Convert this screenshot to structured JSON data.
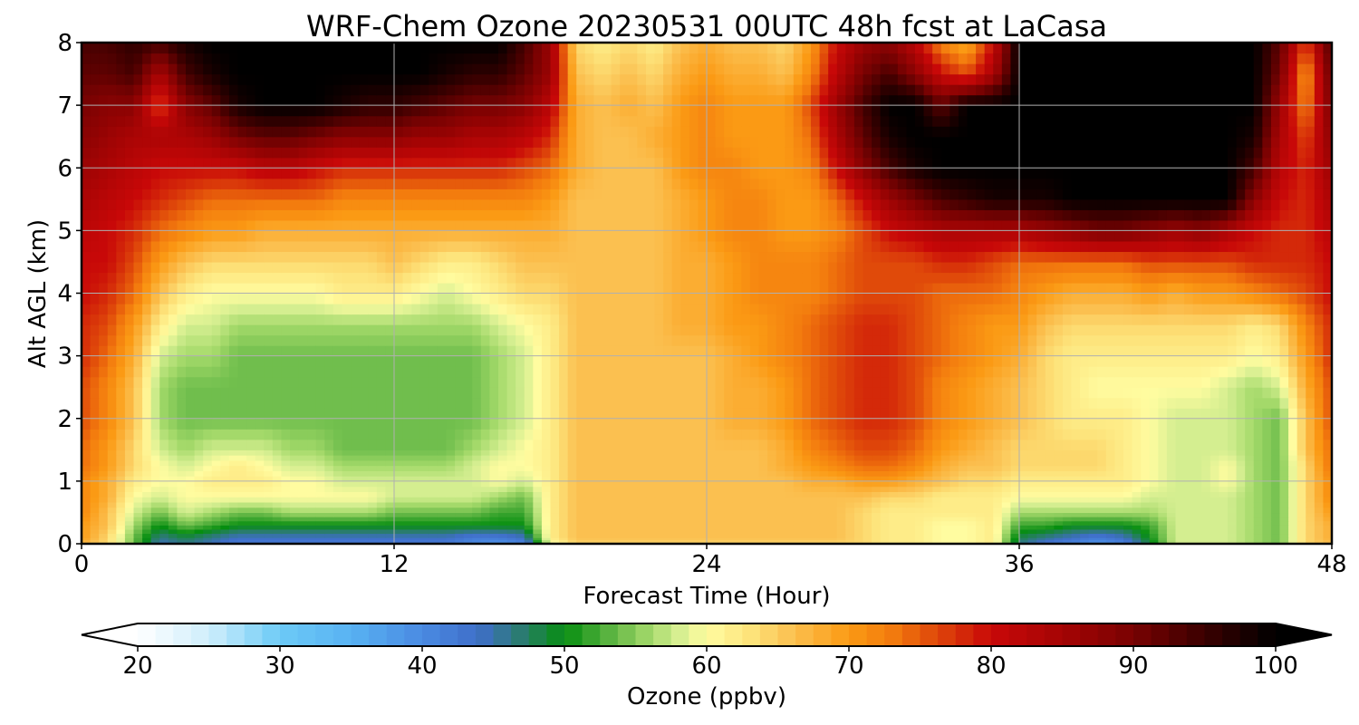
{
  "chart_data": {
    "type": "heatmap",
    "title": "WRF-Chem Ozone  20230531 00UTC 48h fcst at LaCasa",
    "xlabel": "Forecast Time (Hour)",
    "ylabel": "Alt AGL (km)",
    "xlim": [
      0,
      48
    ],
    "ylim": [
      0,
      8
    ],
    "xticks": [
      0,
      12,
      24,
      36,
      48
    ],
    "xtick_labels": [
      "0",
      "12",
      "24",
      "36",
      "48"
    ],
    "yticks": [
      0,
      1,
      2,
      3,
      4,
      5,
      6,
      7,
      8
    ],
    "ytick_labels": [
      "0",
      "1",
      "2",
      "3",
      "4",
      "5",
      "6",
      "7",
      "8"
    ],
    "grid": true,
    "x": [
      0,
      1,
      2,
      3,
      4,
      5,
      6,
      7,
      8,
      9,
      10,
      11,
      12,
      13,
      14,
      15,
      16,
      17,
      18,
      19,
      20,
      21,
      22,
      23,
      24,
      25,
      26,
      27,
      28,
      29,
      30,
      31,
      32,
      33,
      34,
      35,
      36,
      37,
      38,
      39,
      40,
      41,
      42,
      43,
      44,
      45,
      46,
      47,
      48
    ],
    "y": [
      0,
      0.1,
      0.3,
      0.5,
      0.75,
      1,
      1.25,
      1.5,
      2,
      2.5,
      3,
      3.5,
      4,
      4.5,
      5,
      5.5,
      6,
      6.5,
      7,
      7.5,
      8
    ],
    "z_units": "ppbv",
    "z": [
      [
        66,
        64,
        54,
        44,
        46,
        44,
        42,
        42,
        42,
        42,
        42,
        42,
        42,
        42,
        42,
        40,
        38,
        40,
        58,
        64,
        64,
        64,
        64,
        64,
        64,
        64,
        64,
        64,
        64,
        64,
        64,
        62,
        62,
        60,
        60,
        62,
        46,
        42,
        40,
        38,
        40,
        48,
        58,
        58,
        58,
        56,
        54,
        64,
        66
      ],
      [
        70,
        64,
        54,
        46,
        48,
        46,
        44,
        44,
        44,
        44,
        44,
        44,
        44,
        44,
        44,
        42,
        42,
        44,
        62,
        66,
        66,
        66,
        66,
        66,
        66,
        66,
        66,
        66,
        66,
        66,
        64,
        62,
        62,
        60,
        60,
        62,
        48,
        46,
        44,
        42,
        44,
        50,
        58,
        58,
        58,
        56,
        54,
        64,
        68
      ],
      [
        70,
        66,
        56,
        50,
        54,
        52,
        50,
        50,
        50,
        50,
        50,
        50,
        50,
        50,
        50,
        50,
        50,
        50,
        62,
        66,
        66,
        66,
        66,
        66,
        66,
        66,
        66,
        66,
        66,
        66,
        64,
        62,
        62,
        60,
        60,
        62,
        52,
        52,
        50,
        50,
        50,
        52,
        58,
        58,
        58,
        56,
        54,
        64,
        68
      ],
      [
        72,
        66,
        58,
        54,
        58,
        56,
        54,
        54,
        56,
        56,
        56,
        56,
        54,
        54,
        54,
        54,
        52,
        52,
        62,
        66,
        66,
        66,
        66,
        66,
        66,
        66,
        66,
        66,
        66,
        66,
        64,
        62,
        62,
        62,
        62,
        62,
        56,
        56,
        56,
        56,
        56,
        56,
        58,
        58,
        58,
        56,
        54,
        64,
        70
      ],
      [
        72,
        68,
        60,
        58,
        60,
        60,
        60,
        60,
        60,
        60,
        60,
        60,
        58,
        58,
        58,
        58,
        56,
        54,
        62,
        66,
        66,
        66,
        66,
        66,
        66,
        66,
        66,
        66,
        66,
        66,
        66,
        64,
        64,
        62,
        62,
        62,
        60,
        60,
        60,
        60,
        60,
        58,
        58,
        58,
        58,
        56,
        54,
        64,
        72
      ],
      [
        72,
        68,
        62,
        60,
        60,
        62,
        62,
        62,
        60,
        60,
        58,
        58,
        58,
        58,
        58,
        58,
        60,
        58,
        62,
        66,
        66,
        66,
        66,
        66,
        66,
        66,
        66,
        66,
        68,
        68,
        70,
        70,
        68,
        66,
        64,
        64,
        62,
        62,
        62,
        62,
        62,
        60,
        58,
        58,
        60,
        56,
        54,
        64,
        72
      ],
      [
        74,
        70,
        64,
        60,
        58,
        60,
        62,
        60,
        58,
        58,
        56,
        56,
        56,
        56,
        56,
        58,
        60,
        60,
        62,
        66,
        66,
        66,
        66,
        66,
        66,
        66,
        66,
        68,
        70,
        72,
        74,
        74,
        72,
        68,
        66,
        66,
        64,
        64,
        64,
        64,
        62,
        60,
        58,
        58,
        60,
        56,
        54,
        64,
        74
      ],
      [
        74,
        70,
        64,
        58,
        56,
        58,
        58,
        58,
        56,
        56,
        54,
        54,
        54,
        54,
        54,
        56,
        58,
        60,
        62,
        66,
        66,
        66,
        66,
        66,
        66,
        66,
        66,
        68,
        72,
        74,
        76,
        76,
        74,
        70,
        68,
        66,
        64,
        64,
        64,
        64,
        62,
        60,
        58,
        58,
        58,
        56,
        54,
        66,
        74
      ],
      [
        76,
        72,
        66,
        56,
        54,
        54,
        54,
        54,
        54,
        54,
        54,
        54,
        54,
        54,
        54,
        54,
        56,
        58,
        62,
        66,
        66,
        66,
        66,
        66,
        66,
        68,
        68,
        70,
        74,
        76,
        78,
        78,
        76,
        72,
        70,
        68,
        66,
        64,
        62,
        62,
        62,
        60,
        58,
        58,
        58,
        56,
        54,
        66,
        76
      ],
      [
        76,
        72,
        66,
        56,
        54,
        54,
        54,
        54,
        54,
        54,
        54,
        54,
        54,
        54,
        54,
        54,
        56,
        58,
        62,
        66,
        66,
        66,
        66,
        66,
        66,
        68,
        68,
        70,
        74,
        76,
        78,
        78,
        76,
        72,
        70,
        68,
        66,
        64,
        62,
        60,
        60,
        60,
        60,
        60,
        58,
        56,
        58,
        68,
        76
      ],
      [
        78,
        74,
        68,
        58,
        56,
        56,
        54,
        54,
        54,
        54,
        54,
        54,
        54,
        54,
        54,
        54,
        56,
        58,
        62,
        66,
        66,
        66,
        66,
        66,
        66,
        68,
        70,
        72,
        74,
        76,
        78,
        78,
        76,
        74,
        72,
        70,
        68,
        64,
        62,
        62,
        62,
        62,
        62,
        62,
        62,
        60,
        62,
        70,
        78
      ],
      [
        78,
        76,
        70,
        62,
        58,
        58,
        56,
        56,
        56,
        56,
        56,
        56,
        56,
        56,
        56,
        56,
        58,
        60,
        62,
        66,
        66,
        66,
        66,
        68,
        68,
        70,
        70,
        72,
        74,
        76,
        78,
        78,
        76,
        74,
        72,
        70,
        70,
        66,
        64,
        64,
        64,
        64,
        64,
        64,
        64,
        62,
        64,
        72,
        78
      ],
      [
        80,
        78,
        74,
        66,
        62,
        60,
        60,
        60,
        60,
        60,
        62,
        62,
        62,
        60,
        58,
        60,
        62,
        64,
        64,
        66,
        66,
        66,
        66,
        68,
        68,
        70,
        72,
        72,
        72,
        74,
        76,
        76,
        76,
        74,
        74,
        74,
        72,
        70,
        68,
        68,
        68,
        70,
        68,
        70,
        70,
        72,
        74,
        76,
        80
      ],
      [
        80,
        80,
        76,
        70,
        66,
        64,
        64,
        64,
        64,
        64,
        64,
        64,
        66,
        64,
        62,
        62,
        64,
        66,
        66,
        66,
        66,
        66,
        66,
        68,
        68,
        70,
        72,
        72,
        72,
        74,
        76,
        76,
        76,
        78,
        78,
        76,
        74,
        74,
        74,
        74,
        74,
        76,
        76,
        76,
        76,
        78,
        78,
        78,
        80
      ],
      [
        82,
        80,
        78,
        74,
        72,
        70,
        70,
        68,
        68,
        68,
        68,
        68,
        68,
        68,
        68,
        68,
        68,
        68,
        68,
        66,
        66,
        66,
        66,
        68,
        70,
        72,
        72,
        70,
        70,
        72,
        76,
        80,
        82,
        84,
        84,
        84,
        84,
        86,
        88,
        90,
        90,
        88,
        86,
        88,
        84,
        80,
        78,
        78,
        82
      ],
      [
        84,
        82,
        80,
        78,
        76,
        74,
        74,
        74,
        74,
        74,
        72,
        72,
        72,
        72,
        72,
        72,
        72,
        72,
        70,
        66,
        66,
        66,
        66,
        68,
        70,
        72,
        72,
        70,
        70,
        74,
        80,
        86,
        90,
        94,
        96,
        98,
        98,
        98,
        100,
        100,
        100,
        100,
        100,
        100,
        100,
        88,
        80,
        78,
        84
      ],
      [
        86,
        84,
        82,
        80,
        80,
        80,
        80,
        82,
        82,
        80,
        78,
        78,
        78,
        78,
        78,
        78,
        78,
        76,
        74,
        68,
        66,
        66,
        66,
        70,
        72,
        72,
        70,
        70,
        72,
        80,
        88,
        94,
        98,
        100,
        100,
        100,
        100,
        100,
        100,
        100,
        100,
        100,
        100,
        100,
        100,
        94,
        82,
        78,
        86
      ],
      [
        88,
        86,
        84,
        84,
        84,
        86,
        90,
        92,
        92,
        90,
        88,
        88,
        88,
        86,
        86,
        84,
        84,
        82,
        78,
        68,
        66,
        66,
        68,
        70,
        72,
        70,
        70,
        70,
        74,
        84,
        92,
        98,
        100,
        100,
        100,
        100,
        100,
        100,
        100,
        100,
        100,
        100,
        100,
        100,
        100,
        98,
        84,
        76,
        88
      ],
      [
        90,
        88,
        88,
        76,
        88,
        92,
        98,
        100,
        100,
        100,
        98,
        96,
        96,
        94,
        92,
        90,
        90,
        88,
        82,
        68,
        66,
        68,
        66,
        70,
        72,
        70,
        70,
        70,
        76,
        86,
        94,
        100,
        100,
        92,
        100,
        100,
        100,
        100,
        100,
        100,
        100,
        100,
        100,
        100,
        100,
        100,
        86,
        72,
        90
      ],
      [
        92,
        92,
        94,
        84,
        94,
        98,
        100,
        100,
        100,
        100,
        100,
        100,
        100,
        100,
        98,
        96,
        96,
        92,
        86,
        66,
        64,
        66,
        64,
        68,
        70,
        68,
        68,
        66,
        72,
        82,
        90,
        94,
        88,
        80,
        76,
        84,
        100,
        100,
        100,
        100,
        100,
        100,
        100,
        100,
        100,
        100,
        90,
        70,
        92
      ],
      [
        94,
        94,
        96,
        94,
        98,
        100,
        100,
        100,
        100,
        100,
        100,
        100,
        100,
        100,
        100,
        100,
        100,
        94,
        86,
        64,
        62,
        64,
        62,
        66,
        68,
        66,
        66,
        64,
        70,
        80,
        86,
        88,
        82,
        72,
        68,
        80,
        100,
        100,
        100,
        100,
        100,
        100,
        100,
        100,
        100,
        100,
        92,
        76,
        94
      ]
    ],
    "colorbar": {
      "label": "Ozone  (ppbv)",
      "min": 20,
      "max": 100,
      "ticks": [
        20,
        30,
        40,
        50,
        60,
        70,
        80,
        90,
        100
      ],
      "tick_labels": [
        "20",
        "30",
        "40",
        "50",
        "60",
        "70",
        "80",
        "90",
        "100"
      ],
      "extend": "both",
      "orientation": "horizontal",
      "color_stops": [
        {
          "v": 20,
          "c": "#ffffff"
        },
        {
          "v": 25,
          "c": "#cfeefc"
        },
        {
          "v": 30,
          "c": "#6ccaf6"
        },
        {
          "v": 35,
          "c": "#58b2f2"
        },
        {
          "v": 40,
          "c": "#4a8ae2"
        },
        {
          "v": 44,
          "c": "#3f6ec8"
        },
        {
          "v": 47,
          "c": "#2a7c6e"
        },
        {
          "v": 50,
          "c": "#068e10"
        },
        {
          "v": 53,
          "c": "#56b13e"
        },
        {
          "v": 56,
          "c": "#a4d96a"
        },
        {
          "v": 58,
          "c": "#d4ee90"
        },
        {
          "v": 60,
          "c": "#fffca0"
        },
        {
          "v": 63,
          "c": "#fde47c"
        },
        {
          "v": 66,
          "c": "#fbc050"
        },
        {
          "v": 70,
          "c": "#fb9a14"
        },
        {
          "v": 73,
          "c": "#f37c0e"
        },
        {
          "v": 76,
          "c": "#e04a0a"
        },
        {
          "v": 80,
          "c": "#c80808"
        },
        {
          "v": 85,
          "c": "#a40404"
        },
        {
          "v": 90,
          "c": "#780202"
        },
        {
          "v": 95,
          "c": "#3a0000"
        },
        {
          "v": 100,
          "c": "#000000"
        }
      ]
    }
  }
}
